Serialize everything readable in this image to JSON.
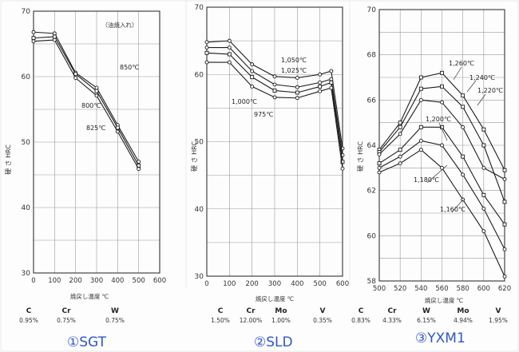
{
  "chart_data": [
    {
      "type": "line",
      "ylabel": "硬 さ HRC",
      "xlabel": "焼戻し温度 ℃",
      "note": "（油焼入れ）",
      "ylim": [
        30,
        70
      ],
      "yticks": [
        30,
        40,
        50,
        60,
        70
      ],
      "xlim": [
        0,
        600
      ],
      "xticks": [
        0,
        100,
        200,
        300,
        400,
        500,
        600
      ],
      "grid": true,
      "series": [
        {
          "name": "850℃",
          "x": [
            0,
            100,
            200,
            300,
            400,
            500
          ],
          "y": [
            66.8,
            66.6,
            60.6,
            58.3,
            52.6,
            47.0
          ]
        },
        {
          "name": "800℃",
          "x": [
            0,
            100,
            200,
            300,
            400,
            500
          ],
          "y": [
            65.9,
            66.1,
            60.4,
            57.8,
            52.2,
            46.4
          ]
        },
        {
          "name": "825℃",
          "x": [
            0,
            100,
            200,
            300,
            400,
            500
          ],
          "y": [
            65.4,
            65.6,
            59.8,
            57.1,
            51.6,
            45.9
          ]
        }
      ],
      "composition": [
        {
          "element": "C",
          "value": "0.95%"
        },
        {
          "element": "Cr",
          "value": "0.75%"
        },
        {
          "element": "W",
          "value": "0.75%"
        }
      ],
      "caption": "①SGT"
    },
    {
      "type": "line",
      "ylabel": "硬 さ HRC",
      "xlabel": "焼戻し温度 ℃",
      "ylim": [
        30,
        70
      ],
      "yticks": [
        30,
        40,
        50,
        60,
        70
      ],
      "xlim": [
        0,
        600
      ],
      "xticks": [
        0,
        100,
        200,
        300,
        400,
        500,
        600
      ],
      "grid": true,
      "series": [
        {
          "name": "1,050℃",
          "x": [
            0,
            100,
            200,
            300,
            400,
            500,
            550,
            600
          ],
          "y": [
            64.8,
            65.0,
            61.5,
            59.7,
            59.5,
            60.0,
            60.5,
            49.0
          ]
        },
        {
          "name": "1,025℃",
          "x": [
            0,
            100,
            200,
            300,
            400,
            500,
            550,
            600
          ],
          "y": [
            64.0,
            64.0,
            60.5,
            58.5,
            58.1,
            58.8,
            59.3,
            48.0
          ]
        },
        {
          "name": "1,000℃",
          "x": [
            0,
            100,
            200,
            300,
            400,
            500,
            550,
            600
          ],
          "y": [
            63.2,
            63.0,
            59.6,
            57.6,
            57.3,
            58.2,
            58.8,
            47.0
          ]
        },
        {
          "name": "975℃",
          "x": [
            0,
            100,
            200,
            300,
            400,
            500,
            550,
            600
          ],
          "y": [
            61.8,
            61.8,
            58.2,
            56.6,
            56.5,
            57.5,
            58.0,
            46.0
          ]
        }
      ],
      "composition": [
        {
          "element": "C",
          "value": "1.50%"
        },
        {
          "element": "Cr",
          "value": "12.00%"
        },
        {
          "element": "Mo",
          "value": "1.00%"
        },
        {
          "element": "V",
          "value": "0.35%"
        }
      ],
      "caption": "②SLD"
    },
    {
      "type": "line",
      "ylabel": "硬 さ HRC",
      "xlabel": "焼戻し温度 ℃",
      "ylim": [
        58,
        70
      ],
      "yticks": [
        58,
        60,
        62,
        64,
        66,
        68,
        70
      ],
      "xlim": [
        500,
        620
      ],
      "xticks": [
        500,
        520,
        540,
        560,
        580,
        600,
        620
      ],
      "grid": true,
      "series": [
        {
          "name": "1,260℃",
          "x": [
            500,
            520,
            540,
            560,
            580,
            600,
            620
          ],
          "y": [
            63.8,
            65.0,
            67.0,
            67.2,
            66.2,
            64.7,
            62.9
          ]
        },
        {
          "name": "1,240℃",
          "x": [
            500,
            520,
            540,
            560,
            580,
            600,
            620
          ],
          "y": [
            63.7,
            64.8,
            66.5,
            66.6,
            65.7,
            64.0,
            61.5
          ]
        },
        {
          "name": "1,220℃",
          "x": [
            500,
            520,
            540,
            560,
            580,
            600,
            620
          ],
          "y": [
            63.6,
            64.5,
            66.0,
            65.9,
            64.8,
            63.0,
            62.5
          ]
        },
        {
          "name": "1,200℃",
          "x": [
            500,
            520,
            540,
            560,
            580,
            600,
            620
          ],
          "y": [
            63.2,
            63.8,
            64.8,
            64.8,
            63.5,
            61.8,
            60.5
          ]
        },
        {
          "name": "1,180℃",
          "x": [
            500,
            520,
            540,
            560,
            580,
            600,
            620
          ],
          "y": [
            63.0,
            63.5,
            64.2,
            64.0,
            62.7,
            61.2,
            59.4
          ]
        },
        {
          "name": "1,160℃",
          "x": [
            500,
            520,
            540,
            560,
            580,
            600,
            620
          ],
          "y": [
            62.8,
            63.2,
            63.8,
            63.0,
            61.6,
            60.2,
            58.2
          ]
        }
      ],
      "composition": [
        {
          "element": "C",
          "value": "0.83%"
        },
        {
          "element": "Cr",
          "value": "4.33%"
        },
        {
          "element": "W",
          "value": "6.15%"
        },
        {
          "element": "Mo",
          "value": "4.94%"
        },
        {
          "element": "V",
          "value": "1.95%"
        }
      ],
      "caption": "③YXM1"
    }
  ]
}
